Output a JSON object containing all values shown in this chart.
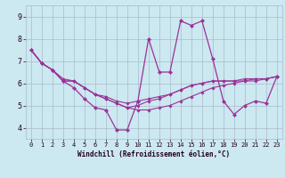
{
  "xlabel": "Windchill (Refroidissement éolien,°C)",
  "bg_color": "#cce8f0",
  "grid_color": "#aabbcc",
  "line_color": "#993399",
  "xlim": [
    -0.5,
    23.5
  ],
  "ylim": [
    3.5,
    9.5
  ],
  "yticks": [
    4,
    5,
    6,
    7,
    8,
    9
  ],
  "xticks": [
    0,
    1,
    2,
    3,
    4,
    5,
    6,
    7,
    8,
    9,
    10,
    11,
    12,
    13,
    14,
    15,
    16,
    17,
    18,
    19,
    20,
    21,
    22,
    23
  ],
  "series": [
    [
      7.5,
      6.9,
      6.6,
      6.1,
      5.8,
      5.3,
      4.9,
      4.8,
      3.9,
      3.9,
      5.2,
      8.0,
      6.5,
      6.5,
      8.8,
      8.6,
      8.8,
      7.1,
      5.2,
      4.6,
      5.0,
      5.2,
      5.1,
      6.3
    ],
    [
      7.5,
      6.9,
      6.6,
      6.1,
      6.1,
      5.8,
      5.5,
      5.3,
      5.1,
      4.9,
      4.8,
      4.8,
      4.9,
      5.0,
      5.2,
      5.4,
      5.6,
      5.8,
      5.9,
      6.0,
      6.1,
      6.1,
      6.2,
      6.3
    ],
    [
      7.5,
      6.9,
      6.6,
      6.1,
      6.1,
      5.8,
      5.5,
      5.3,
      5.1,
      4.9,
      5.0,
      5.2,
      5.3,
      5.5,
      5.7,
      5.9,
      6.0,
      6.1,
      6.1,
      6.1,
      6.1,
      6.2,
      6.2,
      6.3
    ],
    [
      7.5,
      6.9,
      6.6,
      6.2,
      6.1,
      5.8,
      5.5,
      5.4,
      5.2,
      5.1,
      5.2,
      5.3,
      5.4,
      5.5,
      5.7,
      5.9,
      6.0,
      6.1,
      6.1,
      6.1,
      6.2,
      6.2,
      6.2,
      6.3
    ]
  ],
  "fig_width": 3.2,
  "fig_height": 2.0,
  "dpi": 100
}
